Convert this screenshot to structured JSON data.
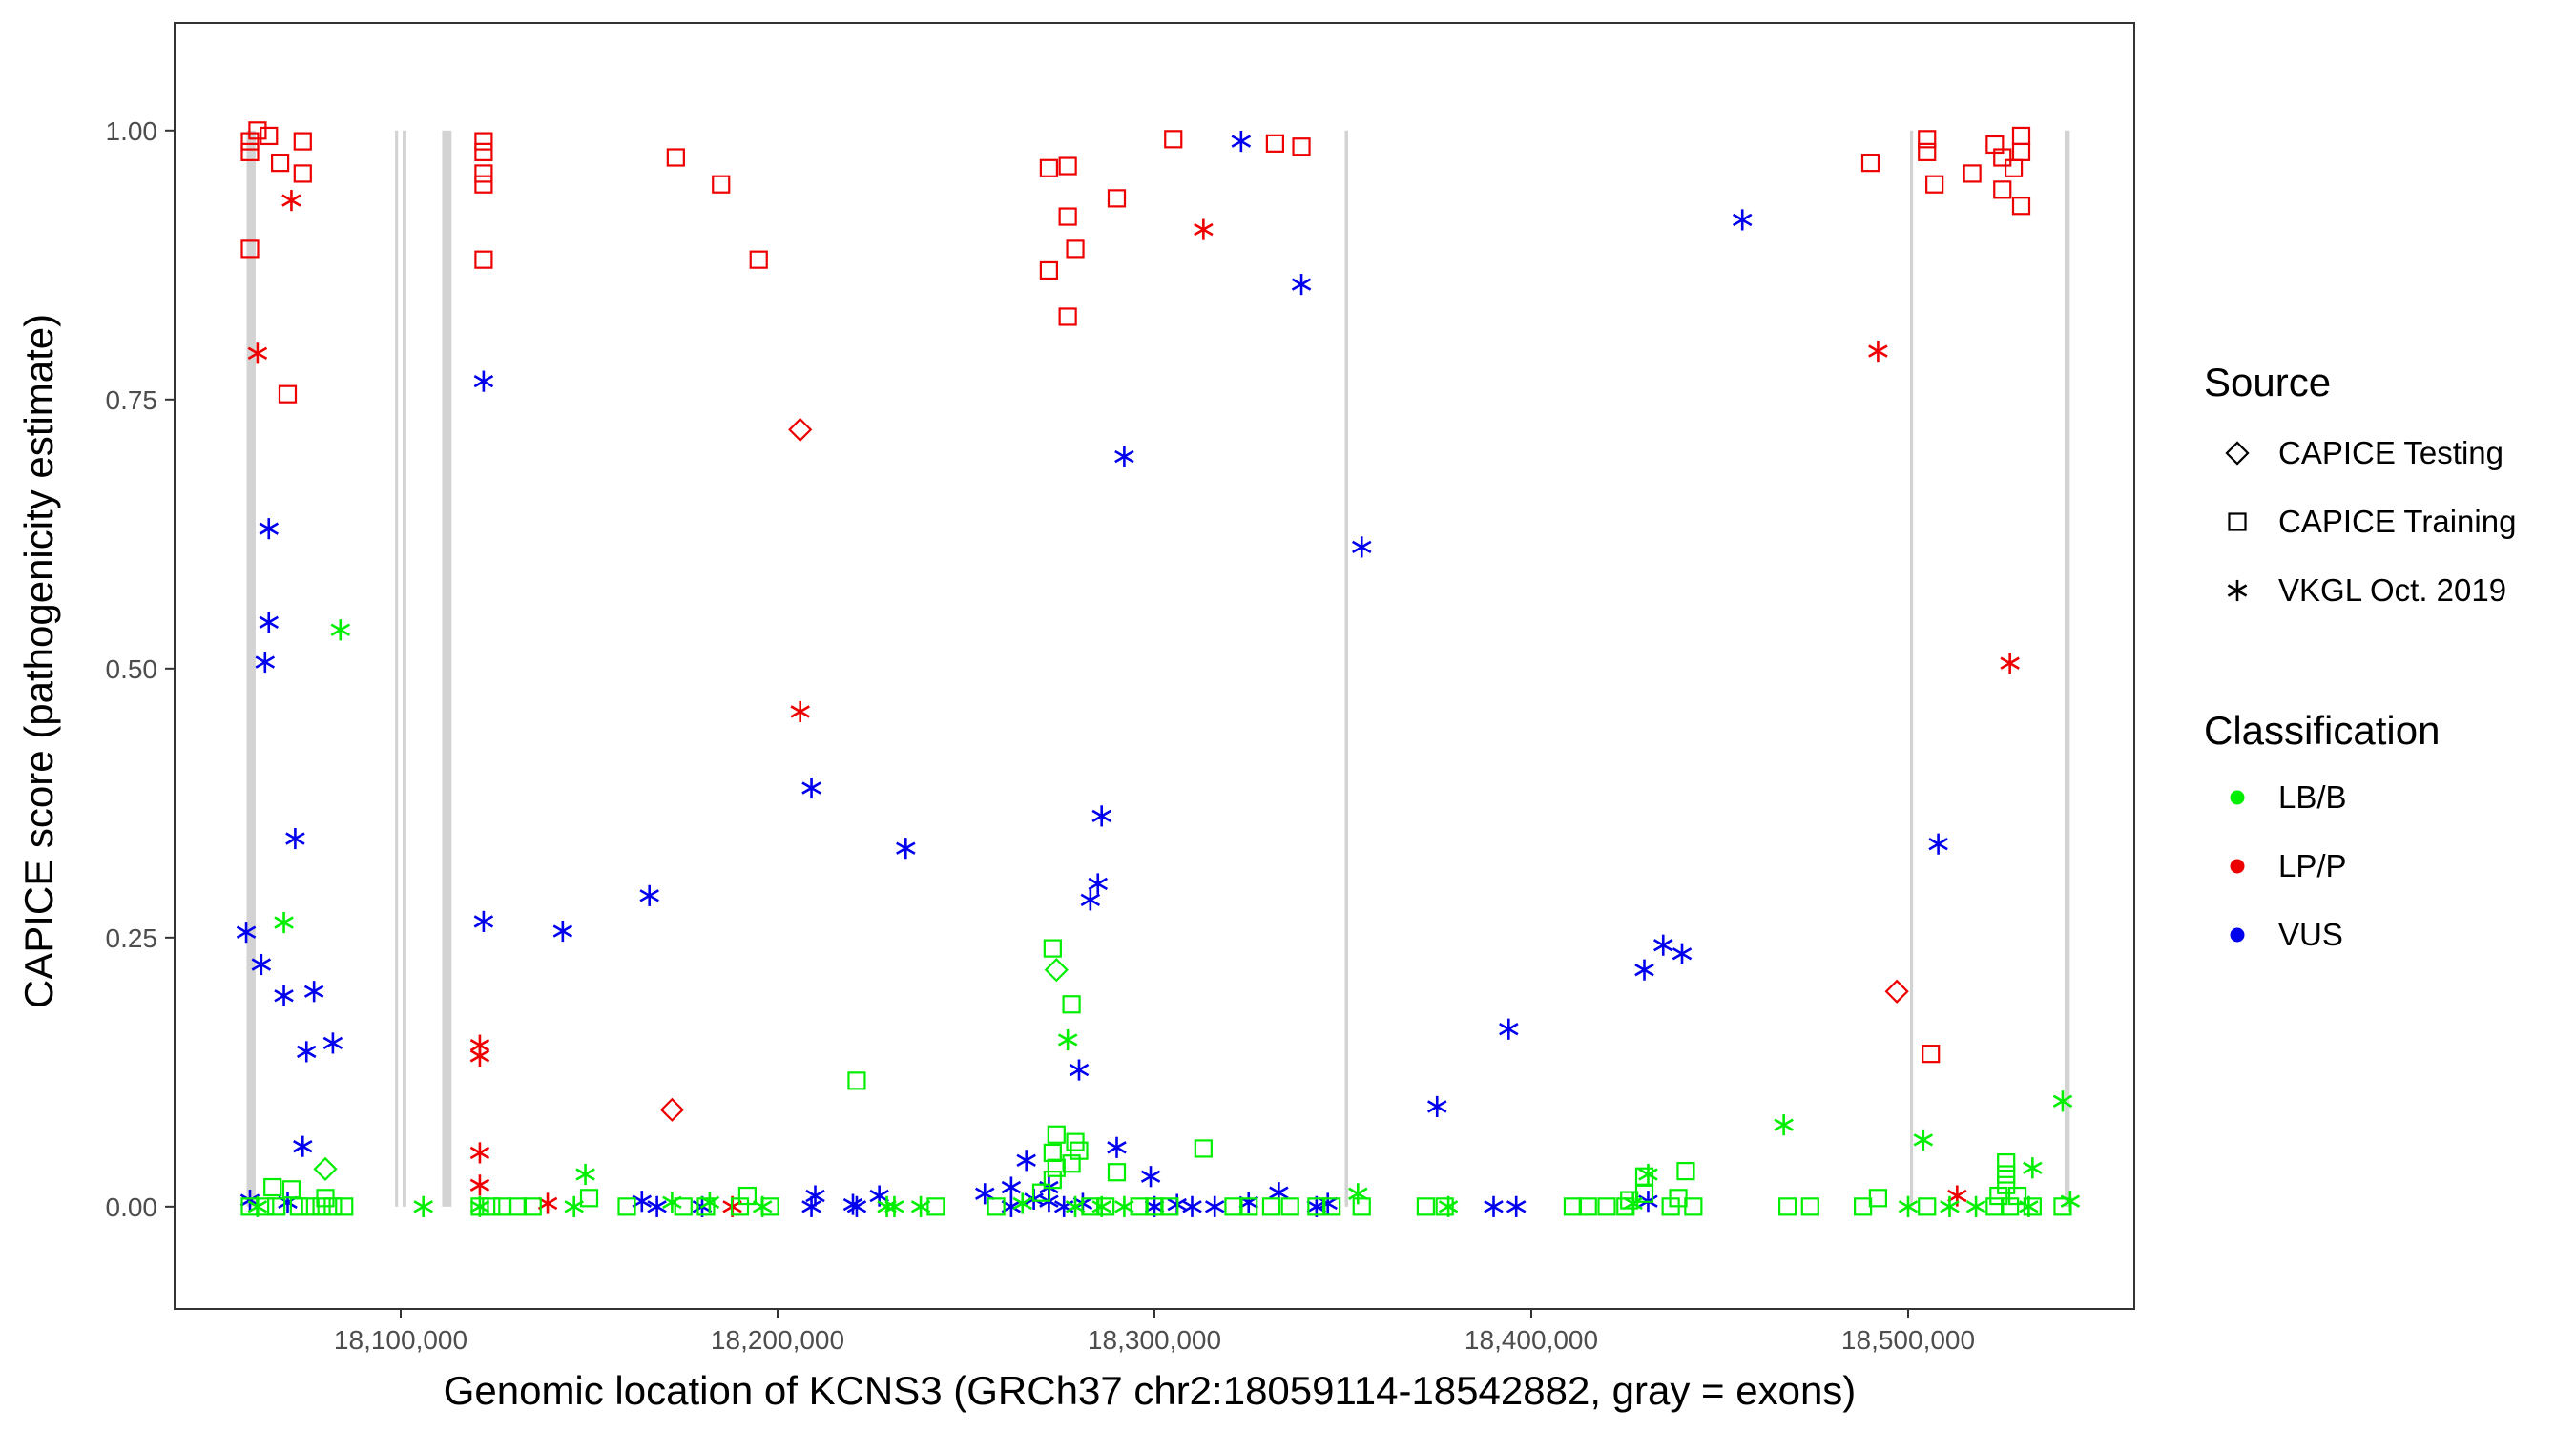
{
  "chart_data": {
    "type": "scatter",
    "xlabel": "Genomic location of KCNS3 (GRCh37 chr2:18059114-18542882, gray = exons)",
    "ylabel": "CAPICE score (pathogenicity estimate)",
    "xlim": [
      18040000,
      18560000
    ],
    "ylim": [
      -0.095,
      1.1
    ],
    "x_ticks": [
      18100000,
      18200000,
      18300000,
      18400000,
      18500000
    ],
    "x_tick_labels": [
      "18,100,000",
      "18,200,000",
      "18,300,000",
      "18,400,000",
      "18,500,000"
    ],
    "y_ticks": [
      0,
      0.25,
      0.5,
      0.75,
      1.0
    ],
    "y_tick_labels": [
      "0.00",
      "0.25",
      "0.50",
      "0.75",
      "1.00"
    ],
    "exons": [
      {
        "start": 18059114,
        "end": 18061500
      },
      {
        "start": 18098500,
        "end": 18099300
      },
      {
        "start": 18100500,
        "end": 18101500
      },
      {
        "start": 18111000,
        "end": 18113500
      },
      {
        "start": 18350500,
        "end": 18351400
      },
      {
        "start": 18500500,
        "end": 18501300
      },
      {
        "start": 18541500,
        "end": 18542882
      }
    ],
    "legend": {
      "source_title": "Source",
      "source_items": [
        {
          "label": "CAPICE Testing",
          "shape": "diamond"
        },
        {
          "label": "CAPICE Training",
          "shape": "square"
        },
        {
          "label": "VKGL Oct. 2019",
          "shape": "asterisk"
        }
      ],
      "classification_title": "Classification",
      "classification_items": [
        {
          "label": "LB/B",
          "color": "#00ee00"
        },
        {
          "label": "LP/P",
          "color": "#ee0000"
        },
        {
          "label": "VUS",
          "color": "#0000ee"
        }
      ]
    },
    "series": [
      {
        "source": "CAPICE Training",
        "classification": "LP/P",
        "color": "#ee0000",
        "shape": "square",
        "points": [
          [
            18060000,
            0.99
          ],
          [
            18060000,
            0.98
          ],
          [
            18062000,
            1.0
          ],
          [
            18065000,
            0.995
          ],
          [
            18068000,
            0.97
          ],
          [
            18074000,
            0.99
          ],
          [
            18074000,
            0.96
          ],
          [
            18060000,
            0.89
          ],
          [
            18070000,
            0.755
          ],
          [
            18122000,
            0.99
          ],
          [
            18122000,
            0.98
          ],
          [
            18122000,
            0.96
          ],
          [
            18122000,
            0.95
          ],
          [
            18122000,
            0.88
          ],
          [
            18173000,
            0.975
          ],
          [
            18185000,
            0.95
          ],
          [
            18195000,
            0.88
          ],
          [
            18272000,
            0.965
          ],
          [
            18277000,
            0.967
          ],
          [
            18277000,
            0.92
          ],
          [
            18279000,
            0.89
          ],
          [
            18272000,
            0.87
          ],
          [
            18277000,
            0.827
          ],
          [
            18290000,
            0.937
          ],
          [
            18305000,
            0.992
          ],
          [
            18332000,
            0.988
          ],
          [
            18339000,
            0.985
          ],
          [
            18490000,
            0.97
          ],
          [
            18505000,
            0.992
          ],
          [
            18505000,
            0.98
          ],
          [
            18507000,
            0.95
          ],
          [
            18517000,
            0.96
          ],
          [
            18523000,
            0.987
          ],
          [
            18525000,
            0.975
          ],
          [
            18525000,
            0.945
          ],
          [
            18528000,
            0.965
          ],
          [
            18530000,
            0.995
          ],
          [
            18530000,
            0.98
          ],
          [
            18530000,
            0.93
          ],
          [
            18506000,
            0.142
          ]
        ]
      },
      {
        "source": "VKGL Oct. 2019",
        "classification": "LP/P",
        "color": "#ee0000",
        "shape": "asterisk",
        "points": [
          [
            18071000,
            0.935
          ],
          [
            18062000,
            0.793
          ],
          [
            18313000,
            0.908
          ],
          [
            18492000,
            0.795
          ],
          [
            18206000,
            0.46
          ],
          [
            18527000,
            0.505
          ],
          [
            18121000,
            0.15
          ],
          [
            18121000,
            0.14
          ],
          [
            18121000,
            0.05
          ],
          [
            18121000,
            0.02
          ],
          [
            18139000,
            0.003
          ],
          [
            18188000,
            0.0
          ],
          [
            18513000,
            0.01
          ]
        ]
      },
      {
        "source": "CAPICE Testing",
        "classification": "LP/P",
        "color": "#ee0000",
        "shape": "diamond",
        "points": [
          [
            18206000,
            0.722
          ],
          [
            18172000,
            0.09
          ],
          [
            18497000,
            0.2
          ]
        ]
      },
      {
        "source": "VKGL Oct. 2019",
        "classification": "VUS",
        "color": "#0000ee",
        "shape": "asterisk",
        "points": [
          [
            18323000,
            0.99
          ],
          [
            18456000,
            0.917
          ],
          [
            18339000,
            0.857
          ],
          [
            18122000,
            0.767
          ],
          [
            18292000,
            0.697
          ],
          [
            18065000,
            0.63
          ],
          [
            18355000,
            0.613
          ],
          [
            18065000,
            0.543
          ],
          [
            18064000,
            0.506
          ],
          [
            18209000,
            0.389
          ],
          [
            18286000,
            0.363
          ],
          [
            18072000,
            0.342
          ],
          [
            18234000,
            0.333
          ],
          [
            18508000,
            0.337
          ],
          [
            18285000,
            0.3
          ],
          [
            18283000,
            0.285
          ],
          [
            18166000,
            0.289
          ],
          [
            18122000,
            0.265
          ],
          [
            18143000,
            0.256
          ],
          [
            18059000,
            0.255
          ],
          [
            18435000,
            0.243
          ],
          [
            18440000,
            0.235
          ],
          [
            18063000,
            0.225
          ],
          [
            18430000,
            0.22
          ],
          [
            18069000,
            0.196
          ],
          [
            18077000,
            0.2
          ],
          [
            18394000,
            0.165
          ],
          [
            18082000,
            0.152
          ],
          [
            18075000,
            0.144
          ],
          [
            18280000,
            0.127
          ],
          [
            18375000,
            0.093
          ],
          [
            18074000,
            0.056
          ],
          [
            18290000,
            0.055
          ],
          [
            18266000,
            0.043
          ],
          [
            18299000,
            0.028
          ],
          [
            18272000,
            0.018
          ],
          [
            18262000,
            0.018
          ],
          [
            18255000,
            0.012
          ],
          [
            18333000,
            0.013
          ],
          [
            18227000,
            0.01
          ],
          [
            18210000,
            0.01
          ],
          [
            18268000,
            0.007
          ],
          [
            18060000,
            0.006
          ],
          [
            18070000,
            0.004
          ],
          [
            18164000,
            0.005
          ],
          [
            18209000,
            0.0
          ],
          [
            18221000,
            0.0
          ],
          [
            18220000,
            0.002
          ],
          [
            18262000,
            0.0
          ],
          [
            18281000,
            0.003
          ],
          [
            18300000,
            0.0
          ],
          [
            18306000,
            0.002
          ],
          [
            18310000,
            0.0
          ],
          [
            18316000,
            0.0
          ],
          [
            18325000,
            0.004
          ],
          [
            18343000,
            0.0
          ],
          [
            18346000,
            0.003
          ],
          [
            18390000,
            0.0
          ],
          [
            18396000,
            0.0
          ],
          [
            18168000,
            0.0
          ],
          [
            18180000,
            0.0
          ],
          [
            18431000,
            0.005
          ],
          [
            18272000,
            0.005
          ],
          [
            18276000,
            0.0
          ]
        ]
      },
      {
        "source": "VKGL Oct. 2019",
        "classification": "LB/B",
        "color": "#00ee00",
        "shape": "asterisk",
        "points": [
          [
            18084000,
            0.536
          ],
          [
            18069000,
            0.264
          ],
          [
            18277000,
            0.155
          ],
          [
            18541000,
            0.098
          ],
          [
            18467000,
            0.076
          ],
          [
            18504000,
            0.062
          ],
          [
            18533000,
            0.036
          ],
          [
            18149000,
            0.03
          ],
          [
            18431000,
            0.03
          ],
          [
            18354000,
            0.012
          ],
          [
            18106000,
            0.0
          ],
          [
            18121000,
            0.0
          ],
          [
            18146000,
            0.0
          ],
          [
            18172000,
            0.004
          ],
          [
            18182000,
            0.004
          ],
          [
            18196000,
            0.0
          ],
          [
            18229000,
            0.0
          ],
          [
            18231000,
            0.0
          ],
          [
            18238000,
            0.0
          ],
          [
            18279000,
            0.0
          ],
          [
            18286000,
            0.0
          ],
          [
            18292000,
            0.0
          ],
          [
            18378000,
            0.0
          ],
          [
            18427000,
            0.003
          ],
          [
            18500000,
            0.0
          ],
          [
            18511000,
            0.0
          ],
          [
            18518000,
            0.0
          ],
          [
            18532000,
            0.0
          ],
          [
            18543000,
            0.005
          ],
          [
            18265000,
            0.003
          ],
          [
            18062000,
            0.0
          ]
        ]
      },
      {
        "source": "CAPICE Training",
        "classification": "LB/B",
        "color": "#00ee00",
        "shape": "square",
        "points": [
          [
            18273000,
            0.24
          ],
          [
            18278000,
            0.188
          ],
          [
            18221000,
            0.117
          ],
          [
            18274000,
            0.067
          ],
          [
            18279000,
            0.06
          ],
          [
            18273000,
            0.05
          ],
          [
            18280000,
            0.052
          ],
          [
            18313000,
            0.054
          ],
          [
            18278000,
            0.04
          ],
          [
            18274000,
            0.036
          ],
          [
            18273000,
            0.025
          ],
          [
            18290000,
            0.032
          ],
          [
            18270000,
            0.013
          ],
          [
            18441000,
            0.033
          ],
          [
            18430000,
            0.028
          ],
          [
            18526000,
            0.041
          ],
          [
            18526000,
            0.03
          ],
          [
            18526000,
            0.02
          ],
          [
            18524000,
            0.01
          ],
          [
            18066000,
            0.018
          ],
          [
            18071000,
            0.016
          ],
          [
            18150000,
            0.008
          ],
          [
            18192000,
            0.01
          ],
          [
            18430000,
            0.012
          ],
          [
            18426000,
            0.006
          ],
          [
            18439000,
            0.008
          ],
          [
            18492000,
            0.008
          ],
          [
            18529000,
            0.01
          ],
          [
            18080000,
            0.008
          ],
          [
            18060000,
            0.0
          ],
          [
            18064000,
            0.0
          ],
          [
            18067000,
            0.0
          ],
          [
            18073000,
            0.0
          ],
          [
            18076000,
            0.0
          ],
          [
            18079000,
            0.0
          ],
          [
            18082000,
            0.0
          ],
          [
            18085000,
            0.0
          ],
          [
            18121000,
            0.0
          ],
          [
            18124000,
            0.0
          ],
          [
            18127000,
            0.0
          ],
          [
            18131000,
            0.0
          ],
          [
            18135000,
            0.0
          ],
          [
            18160000,
            0.0
          ],
          [
            18175000,
            0.0
          ],
          [
            18181000,
            0.0
          ],
          [
            18190000,
            0.0
          ],
          [
            18198000,
            0.0
          ],
          [
            18242000,
            0.0
          ],
          [
            18258000,
            0.0
          ],
          [
            18283000,
            0.0
          ],
          [
            18287000,
            0.0
          ],
          [
            18296000,
            0.0
          ],
          [
            18300000,
            0.0
          ],
          [
            18304000,
            0.0
          ],
          [
            18321000,
            0.0
          ],
          [
            18325000,
            0.0
          ],
          [
            18331000,
            0.0
          ],
          [
            18336000,
            0.0
          ],
          [
            18343000,
            0.0
          ],
          [
            18347000,
            0.0
          ],
          [
            18355000,
            0.0
          ],
          [
            18372000,
            0.0
          ],
          [
            18377000,
            0.0
          ],
          [
            18411000,
            0.0
          ],
          [
            18415000,
            0.0
          ],
          [
            18420000,
            0.0
          ],
          [
            18425000,
            0.0
          ],
          [
            18437000,
            0.0
          ],
          [
            18443000,
            0.0
          ],
          [
            18468000,
            0.0
          ],
          [
            18474000,
            0.0
          ],
          [
            18488000,
            0.0
          ],
          [
            18505000,
            0.0
          ],
          [
            18523000,
            0.0
          ],
          [
            18527000,
            0.0
          ],
          [
            18533000,
            0.0
          ],
          [
            18541000,
            0.0
          ]
        ]
      },
      {
        "source": "CAPICE Testing",
        "classification": "LB/B",
        "color": "#00ee00",
        "shape": "diamond",
        "points": [
          [
            18274000,
            0.22
          ],
          [
            18080000,
            0.035
          ]
        ]
      }
    ]
  }
}
